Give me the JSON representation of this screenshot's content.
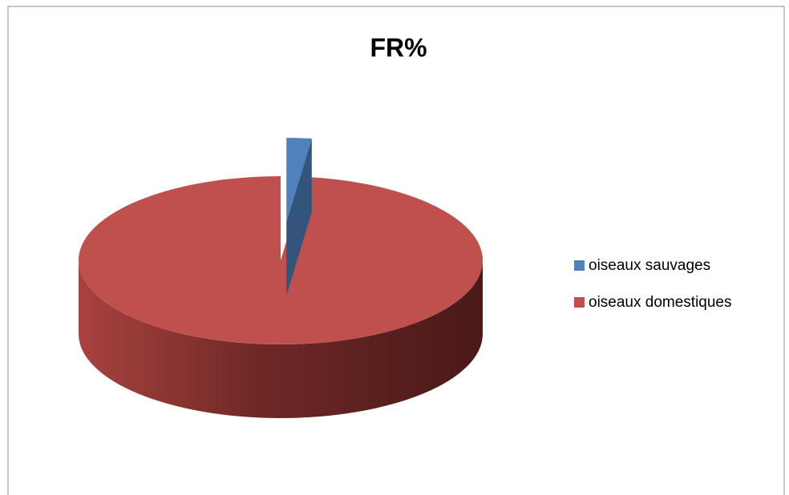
{
  "chart_data": {
    "type": "pie",
    "title": "FR%",
    "categories": [
      "oiseaux sauvages",
      "oiseaux domestiques"
    ],
    "values": [
      2,
      98
    ],
    "colors": [
      "#4f81bd",
      "#c0504d"
    ],
    "legend": "right"
  }
}
